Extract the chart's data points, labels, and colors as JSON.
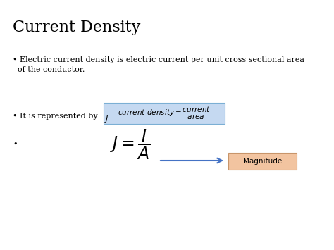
{
  "title": "Current Density",
  "title_fontsize": 16,
  "background_color": "#ffffff",
  "bullet1_line1": "• Electric current density is electric current per unit cross sectional area",
  "bullet1_line2": "  of the conductor.",
  "bullet2_text": "• It is represented by",
  "bullet2_j": "$\\mathit{J}$",
  "bullet3_bullet": "•",
  "box_color": "#c5d9f1",
  "box_edge_color": "#7bafd4",
  "formula_box": "$\\mathit{current\\ density} = \\dfrac{\\mathit{current}}{\\mathit{area}}$",
  "formula_main": "$J = \\dfrac{I}{A}$",
  "magnitude_text": "Magnitude",
  "magnitude_box_color": "#f2c4a0",
  "magnitude_box_edge": "#c8956a",
  "arrow_color": "#4472c4"
}
